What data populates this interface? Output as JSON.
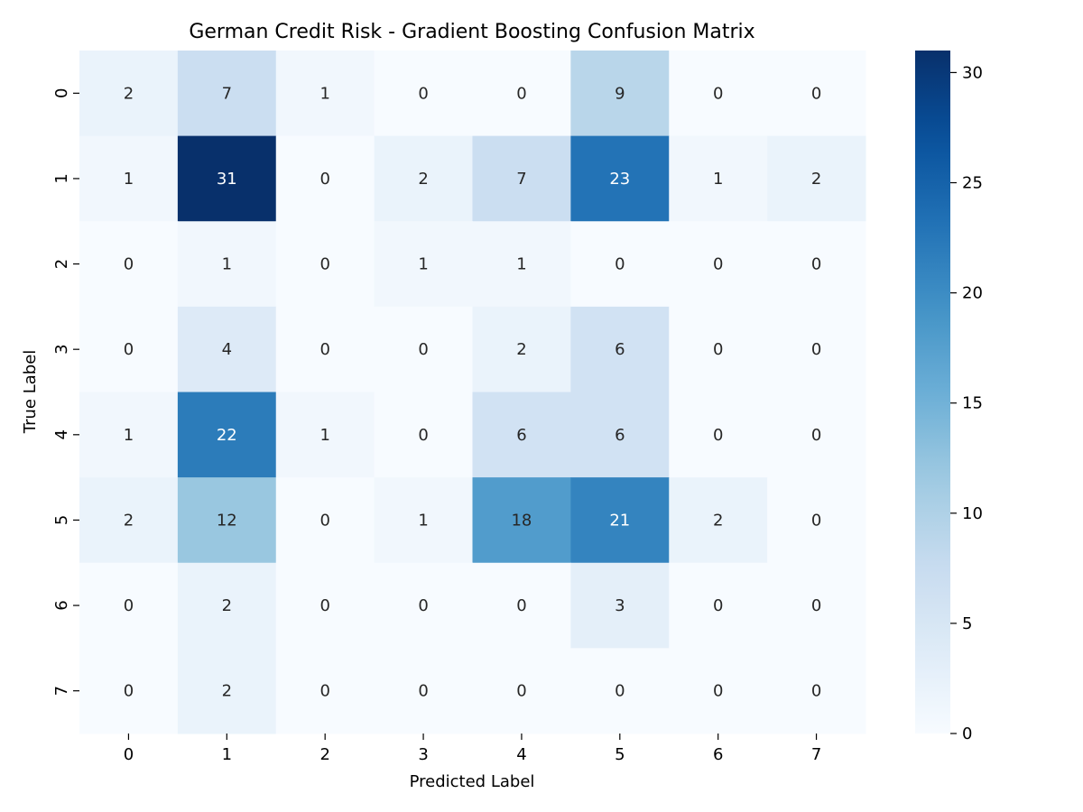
{
  "chart_data": {
    "type": "heatmap",
    "title": "German Credit Risk - Gradient Boosting Confusion Matrix",
    "xlabel": "Predicted Label",
    "ylabel": "True Label",
    "x_categories": [
      "0",
      "1",
      "2",
      "3",
      "4",
      "5",
      "6",
      "7"
    ],
    "y_categories": [
      "0",
      "1",
      "2",
      "3",
      "4",
      "5",
      "6",
      "7"
    ],
    "values": [
      [
        2,
        7,
        1,
        0,
        0,
        9,
        0,
        0
      ],
      [
        1,
        31,
        0,
        2,
        7,
        23,
        1,
        2
      ],
      [
        0,
        1,
        0,
        1,
        1,
        0,
        0,
        0
      ],
      [
        0,
        4,
        0,
        0,
        2,
        6,
        0,
        0
      ],
      [
        1,
        22,
        1,
        0,
        6,
        6,
        0,
        0
      ],
      [
        2,
        12,
        0,
        1,
        18,
        21,
        2,
        0
      ],
      [
        0,
        2,
        0,
        0,
        0,
        3,
        0,
        0
      ],
      [
        0,
        2,
        0,
        0,
        0,
        0,
        0,
        0
      ]
    ],
    "colormap": "Blues",
    "colorbar": {
      "range": [
        0,
        31
      ],
      "ticks": [
        0,
        5,
        10,
        15,
        20,
        25,
        30
      ]
    },
    "grid": false
  }
}
